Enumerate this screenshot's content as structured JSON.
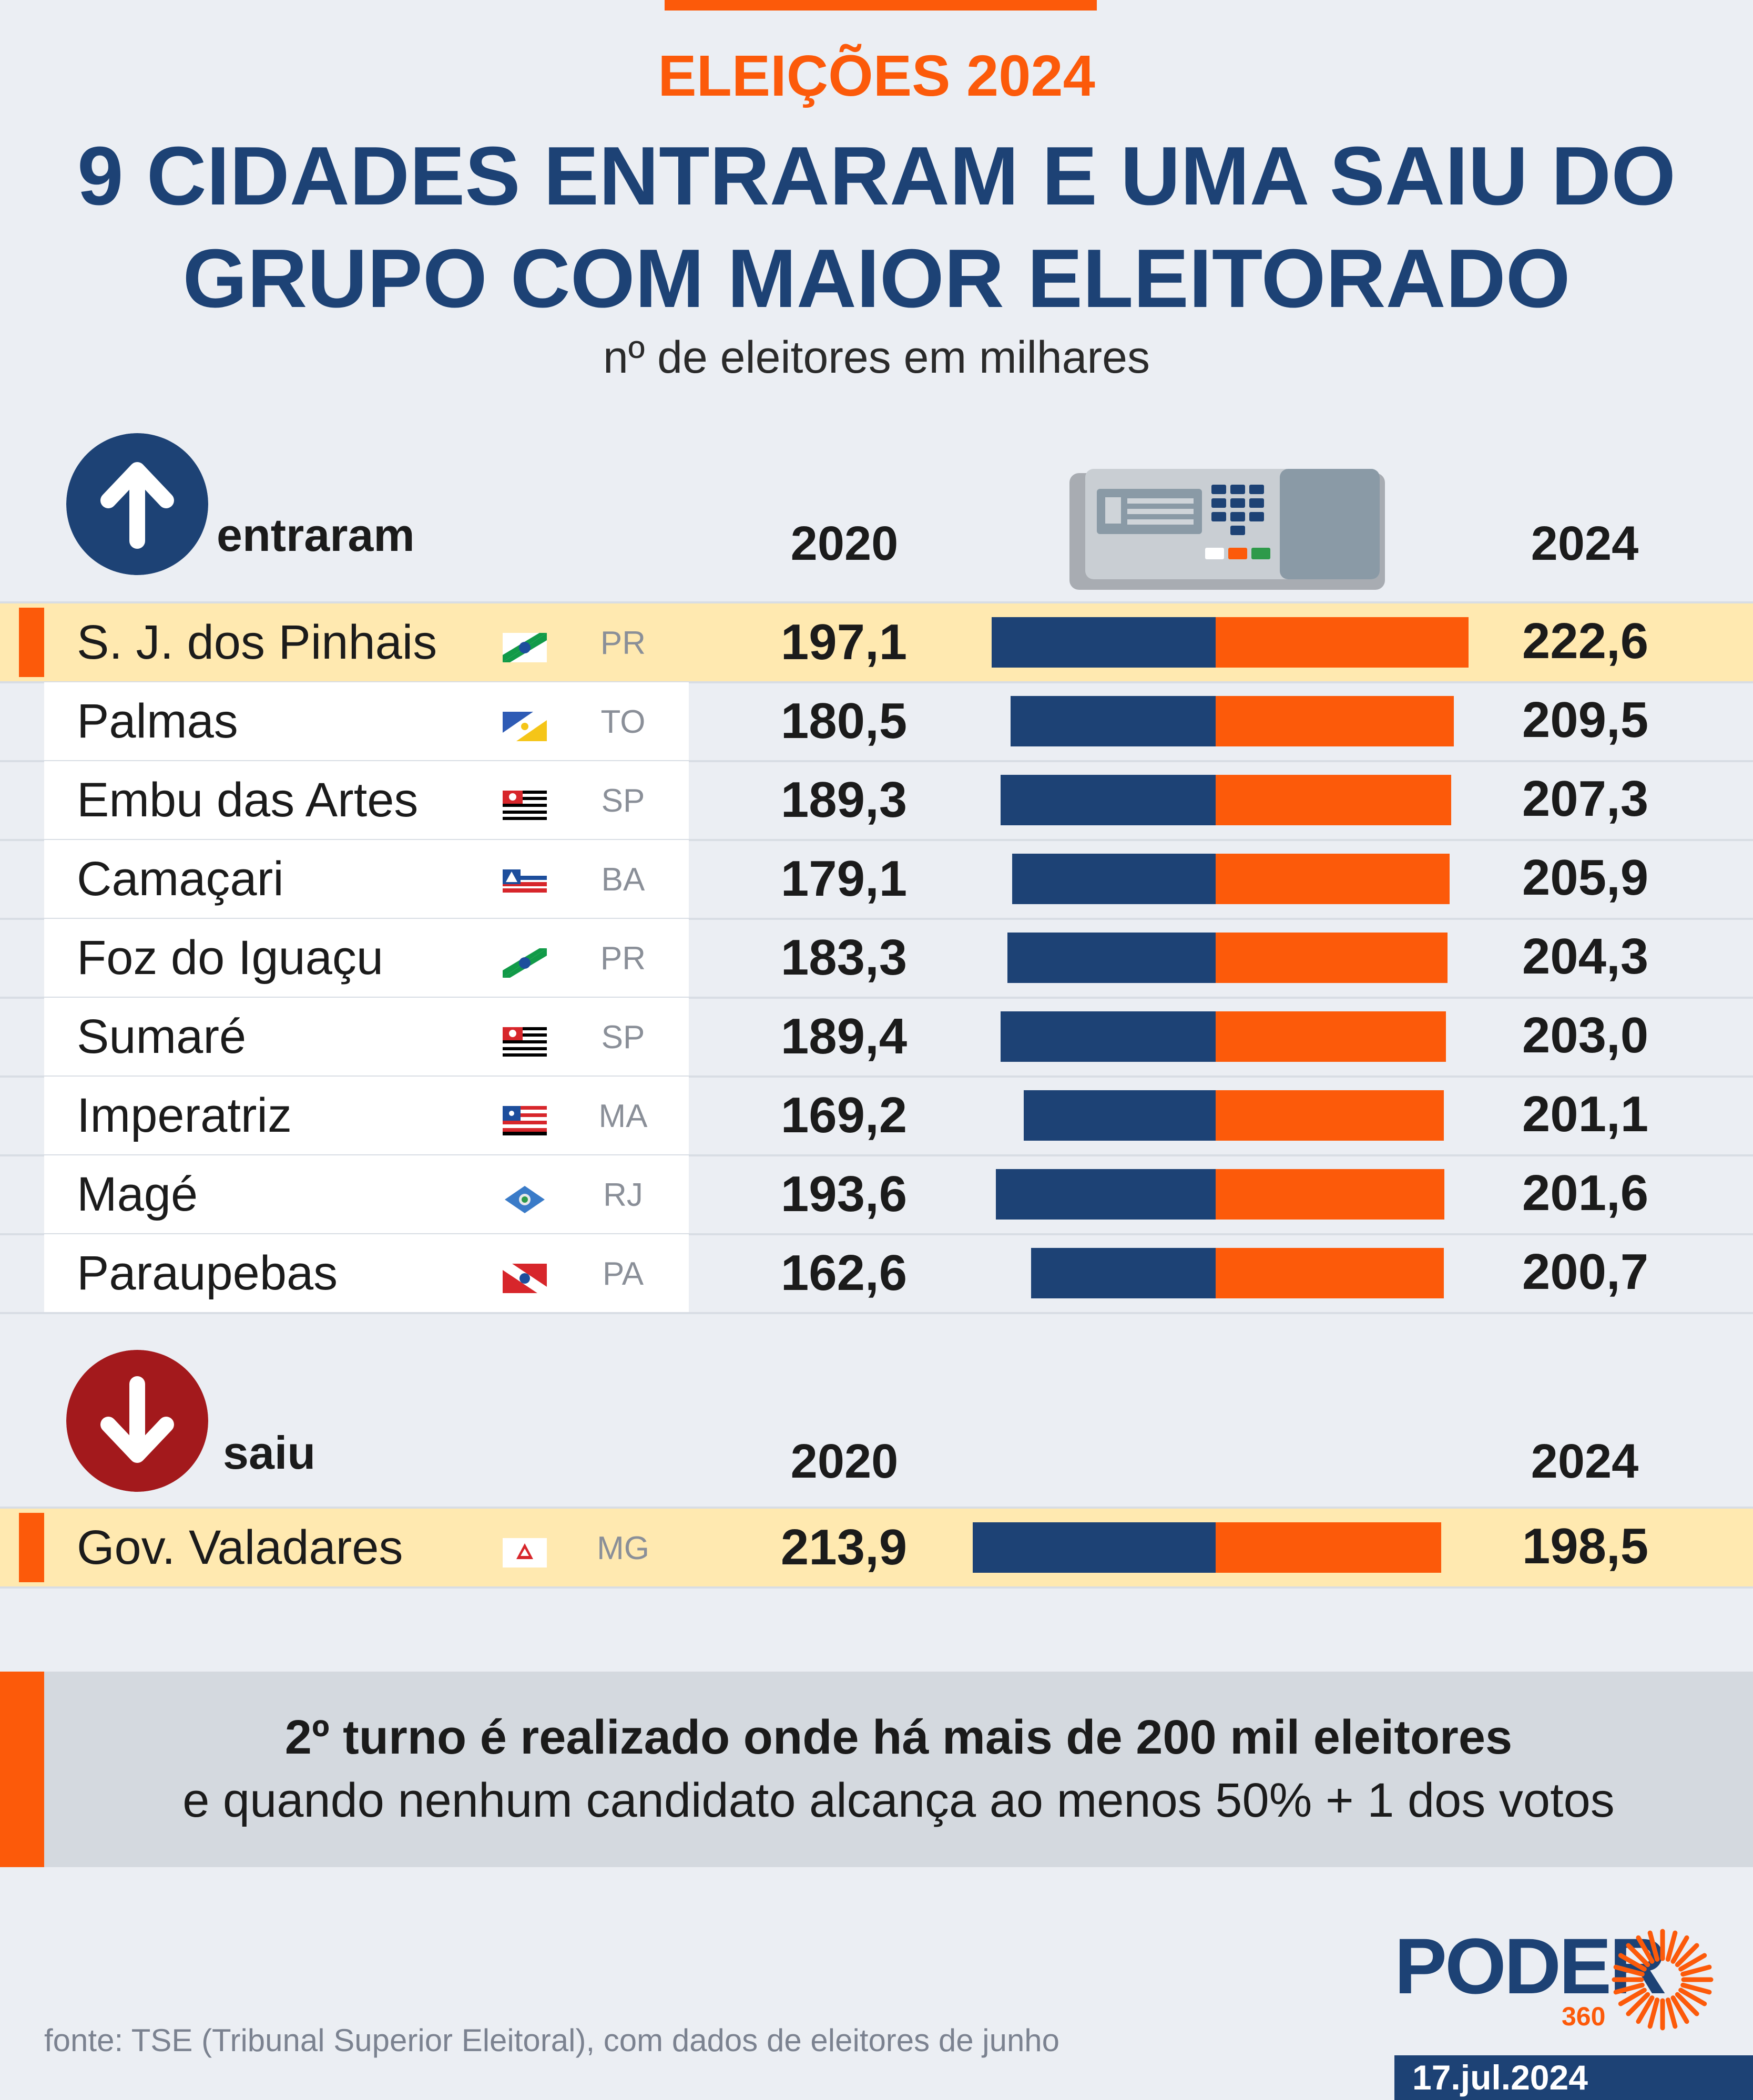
{
  "header": {
    "kicker": "ELEIÇÕES 2024",
    "title_line1": "9 CIDADES ENTRARAM E UMA SAIU DO",
    "title_line2": "GRUPO COM MAIOR ELEITORADO",
    "subtitle": "nº de eleitores em milhares"
  },
  "sections": {
    "entered": {
      "label": "entraram",
      "year_left": "2020",
      "year_right": "2024"
    },
    "left": {
      "label": "saiu",
      "year_left": "2020",
      "year_right": "2024"
    }
  },
  "chart_data": {
    "type": "bar",
    "title": "9 CIDADES ENTRARAM E UMA SAIU DO GRUPO COM MAIOR ELEITORADO",
    "subtitle": "nº de eleitores em milhares",
    "unit": "milhares de eleitores",
    "series_names": [
      "2020",
      "2024"
    ],
    "entered": [
      {
        "city": "S. J. dos Pinhais",
        "uf": "PR",
        "v2020": 197.1,
        "v2024": 222.6,
        "label2020": "197,1",
        "label2024": "222,6",
        "highlight": true
      },
      {
        "city": "Palmas",
        "uf": "TO",
        "v2020": 180.5,
        "v2024": 209.5,
        "label2020": "180,5",
        "label2024": "209,5"
      },
      {
        "city": "Embu das Artes",
        "uf": "SP",
        "v2020": 189.3,
        "v2024": 207.3,
        "label2020": "189,3",
        "label2024": "207,3"
      },
      {
        "city": "Camaçari",
        "uf": "BA",
        "v2020": 179.1,
        "v2024": 205.9,
        "label2020": "179,1",
        "label2024": "205,9"
      },
      {
        "city": "Foz do Iguaçu",
        "uf": "PR",
        "v2020": 183.3,
        "v2024": 204.3,
        "label2020": "183,3",
        "label2024": "204,3"
      },
      {
        "city": "Sumaré",
        "uf": "SP",
        "v2020": 189.4,
        "v2024": 203.0,
        "label2020": "189,4",
        "label2024": "203,0"
      },
      {
        "city": "Imperatriz",
        "uf": "MA",
        "v2020": 169.2,
        "v2024": 201.1,
        "label2020": "169,2",
        "label2024": "201,1"
      },
      {
        "city": "Magé",
        "uf": "RJ",
        "v2020": 193.6,
        "v2024": 201.6,
        "label2020": "193,6",
        "label2024": "201,6"
      },
      {
        "city": "Paraupebas",
        "uf": "PA",
        "v2020": 162.6,
        "v2024": 200.7,
        "label2020": "162,6",
        "label2024": "200,7"
      }
    ],
    "left": [
      {
        "city": "Gov. Valadares",
        "uf": "MG",
        "v2020": 213.9,
        "v2024": 198.5,
        "label2020": "213,9",
        "label2024": "198,5",
        "highlight": true
      }
    ],
    "colors": {
      "2020": "#1d4275",
      "2024": "#fc5a0a"
    }
  },
  "note": {
    "line1": "2º turno é realizado onde há mais de 200 mil eleitores",
    "line2": "e quando nenhum candidato alcança ao menos 50% + 1 dos votos"
  },
  "footer": {
    "source": "fonte: TSE (Tribunal Superior Eleitoral), com dados de eleitores de junho",
    "logo": "PODER",
    "logo_sub": "360",
    "date": "17.jul.2024"
  },
  "colors": {
    "accent": "#fc5a0a",
    "brand": "#1d4275",
    "highlight": "#ffe9b0",
    "down": "#a3191c"
  }
}
